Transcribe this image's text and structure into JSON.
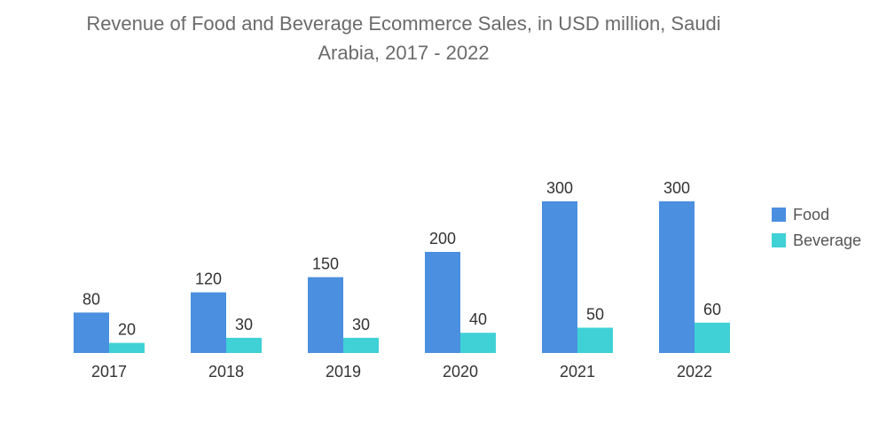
{
  "chart_data": {
    "type": "bar",
    "title_lines": [
      "Revenue of Food and Beverage Ecommerce Sales, in USD million, Saudi",
      "Arabia, 2017 - 2022"
    ],
    "categories": [
      "2017",
      "2018",
      "2019",
      "2020",
      "2021",
      "2022"
    ],
    "series": [
      {
        "name": "Food",
        "color": "#4a8fe0",
        "values": [
          80,
          120,
          150,
          200,
          300,
          300
        ]
      },
      {
        "name": "Beverage",
        "color": "#3fd1d6",
        "values": [
          20,
          30,
          30,
          40,
          50,
          60
        ]
      }
    ],
    "xlabel": "",
    "ylabel": "",
    "ylim": [
      0,
      300
    ],
    "grid": false,
    "legend": "right"
  }
}
